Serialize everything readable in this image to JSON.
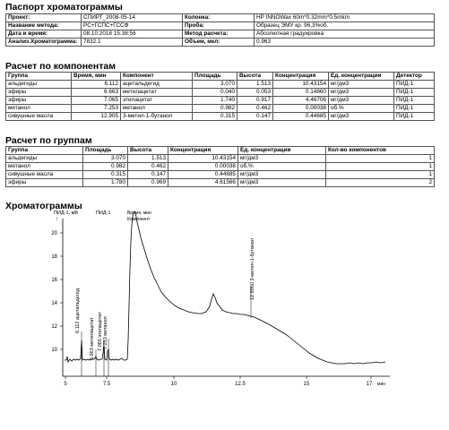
{
  "passport": {
    "title": "Паспорт хроматограммы",
    "rows": [
      {
        "l1": "Проект:",
        "v1": "СПИРТ_2008-05-14",
        "l2": "Колонка:",
        "v2": "HP INNOWax 60m*0.32mm*0.5mkm"
      },
      {
        "l1": "Название метода:",
        "v1": "РС+ГСПС+ГССФ",
        "l2": "Проба:",
        "v2": "Образец ЭМУ кр. 96,3%об."
      },
      {
        "l1": "Дата и время:",
        "v1": "08.10.2018 15:38:56",
        "l2": "Метод расчета:",
        "v2": "Абсолютная градуировка"
      },
      {
        "l1": "Анализ.Хроматограмма:",
        "v1": "7832.1",
        "l2": "Объем, мкл:",
        "v2": "0.963"
      }
    ]
  },
  "components": {
    "title": "Расчет по компонентам",
    "headers": [
      "Группа",
      "Время, мин",
      "Компонент",
      "Площадь",
      "Высота",
      "Концентрация",
      "Ед. концентрации",
      "Детектор"
    ],
    "rows": [
      [
        "альдегиды",
        "6.112",
        "ацетальдегид",
        "3.070",
        "1.513",
        "10.43154",
        "мг/дм3",
        "ПИД-1"
      ],
      [
        "эфиры",
        "6.663",
        "метилацетат",
        "0.040",
        "0.053",
        "0.14860",
        "мг/дм3",
        "ПИД-1"
      ],
      [
        "эфиры",
        "7.065",
        "этилацетат",
        "1.740",
        "0.917",
        "4.46706",
        "мг/дм3",
        "ПИД-1"
      ],
      [
        "метанол",
        "7.253",
        "метанол",
        "0.982",
        "0.462",
        "0.00038",
        "об.%",
        "ПИД-1"
      ],
      [
        "сивушные масла",
        "12.905",
        "3-метил-1-бутанол",
        "0.315",
        "0.147",
        "0.44685",
        "мг/дм3",
        "ПИД-1"
      ]
    ]
  },
  "groups": {
    "title": "Расчет по группам",
    "headers": [
      "Группа",
      "Площадь",
      "Высота",
      "Концентрация",
      "Ед. концентрации",
      "Кол-во компонентов"
    ],
    "rows": [
      [
        "альдегиды",
        "3.070",
        "1.513",
        "10.43154",
        "мг/дм3",
        "1"
      ],
      [
        "метанол",
        "0.982",
        "0.462",
        "0.00038",
        "об.%",
        "1"
      ],
      [
        "сивушные масла",
        "0.315",
        "0.147",
        "0.44685",
        "мг/дм3",
        "1"
      ],
      [
        "эфиры",
        "1.780",
        "0.969",
        "4.61566",
        "мг/дм3",
        "2"
      ]
    ]
  },
  "chromatogram": {
    "title": "Хроматограммы",
    "y_label": "ПИД-1, мВ",
    "y_arrow": "↑",
    "channel_label_1": "ПИД-1",
    "channel_label_2": "Время, мин",
    "channel_label_3": "Компонент",
    "x_unit": "мин",
    "y_ticks": [
      "20",
      "18",
      "16",
      "14",
      "12",
      "10"
    ],
    "x_ticks": [
      "5",
      "7.5",
      "10",
      "12.5",
      "15",
      "17"
    ],
    "peak_labels": [
      "6.112 ацетальдегид",
      "6.663 метилацетат",
      "7.065 этилацетат",
      "7.253 метанол",
      "12.9050 3-метил-1-бутанол"
    ],
    "line_color": "#000000"
  }
}
